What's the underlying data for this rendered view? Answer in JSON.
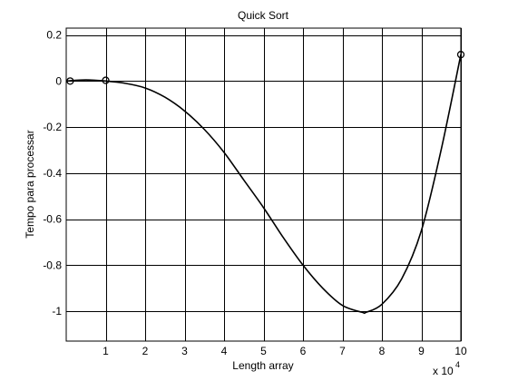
{
  "chart_data": {
    "type": "line",
    "title": "Quick Sort",
    "xlabel": "Length array",
    "ylabel": "Tempo para processar",
    "x_multiplier_label": "x 10",
    "x_multiplier_exponent": "4",
    "xlim": [
      0,
      10
    ],
    "ylim": [
      -1.13,
      0.23
    ],
    "grid": true,
    "x_ticks": [
      1,
      2,
      3,
      4,
      5,
      6,
      7,
      8,
      9,
      10
    ],
    "x_tick_labels": [
      "1",
      "2",
      "3",
      "4",
      "5",
      "6",
      "7",
      "8",
      "9",
      "10"
    ],
    "y_ticks": [
      0.2,
      0,
      -0.2,
      -0.4,
      -0.6,
      -0.8,
      -1
    ],
    "y_tick_labels": [
      "0.2",
      "0",
      "-0.2",
      "-0.4",
      "-0.6",
      "-0.8",
      "-1"
    ],
    "series": [
      {
        "line_color": "#000000",
        "x": [
          0,
          0.5,
          1,
          1.5,
          2,
          2.5,
          3,
          3.5,
          4,
          4.5,
          5,
          5.5,
          6,
          6.5,
          7,
          7.5,
          7.6,
          8,
          8.5,
          9,
          9.5,
          10
        ],
        "y": [
          0,
          0.005,
          0,
          -0.01,
          -0.03,
          -0.07,
          -0.13,
          -0.21,
          -0.31,
          -0.43,
          -0.55,
          -0.68,
          -0.8,
          -0.9,
          -0.975,
          -1.005,
          -1.005,
          -0.97,
          -0.86,
          -0.65,
          -0.3,
          0.115
        ]
      }
    ],
    "markers": {
      "shape": "circle-open",
      "x": [
        0.1,
        1,
        10
      ],
      "y": [
        0,
        0.003,
        0.115
      ]
    }
  }
}
